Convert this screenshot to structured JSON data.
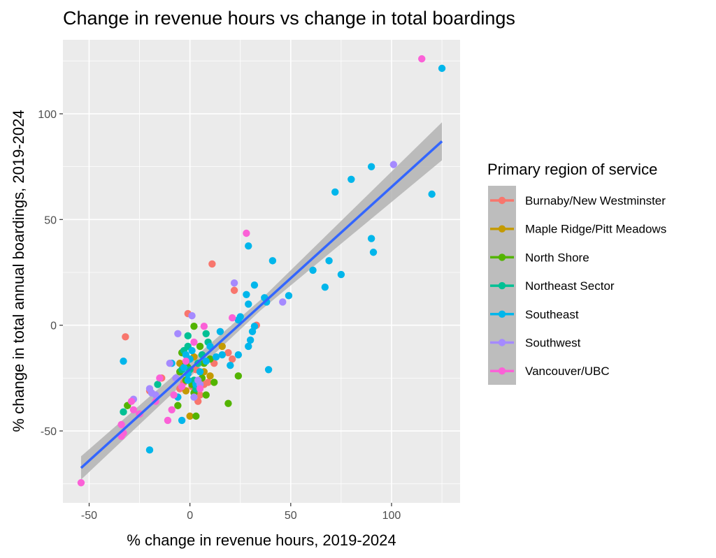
{
  "chart_data": {
    "type": "scatter",
    "title": "Change in revenue hours vs change in total boardings",
    "xlabel": "% change in revenue hours, 2019-2024",
    "ylabel": "% change in total annual boardings, 2019-2024",
    "xlim": [
      -63,
      134
    ],
    "ylim": [
      -84,
      135
    ],
    "x_ticks": [
      -50,
      0,
      50,
      100
    ],
    "y_ticks": [
      -50,
      0,
      50,
      100
    ],
    "x_tick_labels": [
      "-50",
      "0",
      "50",
      "100"
    ],
    "y_tick_labels": [
      "-50",
      "0",
      "50",
      "100"
    ],
    "grid": true,
    "legend": {
      "title": "Primary region of service",
      "position": "right"
    },
    "trend_line": {
      "method": "linear",
      "start": [
        -54,
        -67.5
      ],
      "end": [
        125,
        87
      ],
      "band_low": [
        [
          -54,
          -73
        ],
        [
          35,
          7
        ],
        [
          125,
          78
        ]
      ],
      "band_high": [
        [
          -54,
          -62
        ],
        [
          35,
          12
        ],
        [
          125,
          96
        ]
      ],
      "color": "#3366ff",
      "band_color": "#b3b3b3"
    },
    "series": [
      {
        "name": "Burnaby/New Westminster",
        "color": "#F8766D",
        "points": [
          [
            -32,
            -5.5
          ],
          [
            -1,
            5.5
          ],
          [
            11,
            29
          ],
          [
            22,
            16.5
          ],
          [
            33,
            0
          ],
          [
            21,
            -16
          ],
          [
            19,
            -13
          ],
          [
            9,
            -27
          ],
          [
            12,
            -18
          ],
          [
            4,
            -36
          ],
          [
            1,
            -29
          ],
          [
            -2,
            -31
          ],
          [
            -5,
            -30
          ],
          [
            7,
            -28
          ],
          [
            -14,
            -25
          ],
          [
            -20,
            -31
          ],
          [
            -25,
            -42
          ],
          [
            -3,
            -27
          ],
          [
            5,
            -33
          ],
          [
            3,
            -21
          ]
        ]
      },
      {
        "name": "Maple Ridge/Pitt Meadows",
        "color": "#C49A00",
        "points": [
          [
            0,
            -43
          ],
          [
            7,
            -22
          ],
          [
            10,
            -24
          ],
          [
            4,
            -27
          ],
          [
            -2,
            -31
          ],
          [
            16,
            -10
          ],
          [
            2,
            -15
          ],
          [
            -5,
            -18
          ]
        ]
      },
      {
        "name": "North Shore",
        "color": "#53B400",
        "points": [
          [
            2,
            -0.5
          ],
          [
            5,
            -10
          ],
          [
            -4,
            -13
          ],
          [
            -1,
            -20
          ],
          [
            -6,
            -38
          ],
          [
            3,
            -43
          ],
          [
            12,
            -27
          ],
          [
            8,
            -33
          ],
          [
            6,
            -25
          ],
          [
            1,
            -28
          ],
          [
            -2,
            -26
          ],
          [
            19,
            -37
          ],
          [
            24,
            -24
          ],
          [
            -31,
            -38
          ],
          [
            2,
            -32
          ],
          [
            10,
            -16
          ],
          [
            7,
            -18
          ],
          [
            -5,
            -22
          ],
          [
            -2,
            -18
          ]
        ]
      },
      {
        "name": "Northeast Sector",
        "color": "#00C094",
        "points": [
          [
            -33,
            -41
          ],
          [
            -16,
            -28
          ],
          [
            -4,
            -21
          ],
          [
            -1,
            -5
          ],
          [
            8,
            -4
          ],
          [
            -3,
            -12
          ],
          [
            4,
            -18
          ],
          [
            2,
            -26
          ],
          [
            0,
            -21
          ],
          [
            6,
            -14
          ],
          [
            9,
            -8
          ],
          [
            -1,
            -10
          ],
          [
            3,
            -30
          ]
        ]
      },
      {
        "name": "Southeast",
        "color": "#00B6EB",
        "points": [
          [
            125,
            121.5
          ],
          [
            120,
            62
          ],
          [
            90,
            75
          ],
          [
            80,
            69
          ],
          [
            72,
            63
          ],
          [
            90,
            41
          ],
          [
            91,
            34.5
          ],
          [
            75,
            24
          ],
          [
            69,
            30.5
          ],
          [
            67,
            18
          ],
          [
            61,
            26
          ],
          [
            49,
            14
          ],
          [
            41,
            30.5
          ],
          [
            37,
            13
          ],
          [
            38,
            11
          ],
          [
            32,
            19
          ],
          [
            29,
            10
          ],
          [
            28,
            14.5
          ],
          [
            29,
            37.5
          ],
          [
            24,
            -14
          ],
          [
            30,
            -7
          ],
          [
            29,
            -10
          ],
          [
            31,
            -3
          ],
          [
            32,
            -0.5
          ],
          [
            25,
            4
          ],
          [
            24,
            2.5
          ],
          [
            16,
            -14
          ],
          [
            13,
            -15
          ],
          [
            10,
            -10
          ],
          [
            8,
            -17
          ],
          [
            1,
            -12
          ],
          [
            -1,
            -23
          ],
          [
            -3,
            -20
          ],
          [
            -6,
            -34
          ],
          [
            -4,
            -45
          ],
          [
            -20,
            -59
          ],
          [
            -33,
            -17
          ],
          [
            -9,
            -18
          ],
          [
            3,
            -28
          ],
          [
            5,
            -22
          ],
          [
            -1,
            -26
          ],
          [
            39,
            -21
          ],
          [
            20,
            -19
          ],
          [
            15,
            -3
          ],
          [
            0,
            -16
          ],
          [
            -2,
            -14
          ]
        ]
      },
      {
        "name": "Southwest",
        "color": "#A58AFF",
        "points": [
          [
            101,
            76
          ],
          [
            46,
            11
          ],
          [
            22,
            20
          ],
          [
            1,
            4.5
          ],
          [
            -6,
            -4
          ],
          [
            -10,
            -18
          ],
          [
            -28,
            -35
          ],
          [
            -19,
            -32
          ],
          [
            -20,
            -30
          ],
          [
            -17,
            -33
          ],
          [
            4,
            -26
          ],
          [
            2,
            -34
          ],
          [
            -7,
            -25
          ],
          [
            5,
            -28
          ]
        ]
      },
      {
        "name": "Vancouver/UBC",
        "color": "#FB61D7",
        "points": [
          [
            115,
            126
          ],
          [
            28,
            43.5
          ],
          [
            21,
            3.5
          ],
          [
            7,
            -0.5
          ],
          [
            2,
            -8
          ],
          [
            -2,
            -17
          ],
          [
            -15,
            -25
          ],
          [
            -11,
            -45
          ],
          [
            -9,
            -40
          ],
          [
            -17,
            -36
          ],
          [
            -25,
            -42
          ],
          [
            -28,
            -40
          ],
          [
            -34,
            -47
          ],
          [
            -34,
            -52.5
          ],
          [
            -33,
            -51
          ],
          [
            -54,
            -74.5
          ],
          [
            -29,
            -36
          ],
          [
            -8,
            -33
          ],
          [
            -4,
            -29
          ],
          [
            5,
            -30
          ]
        ]
      }
    ]
  }
}
